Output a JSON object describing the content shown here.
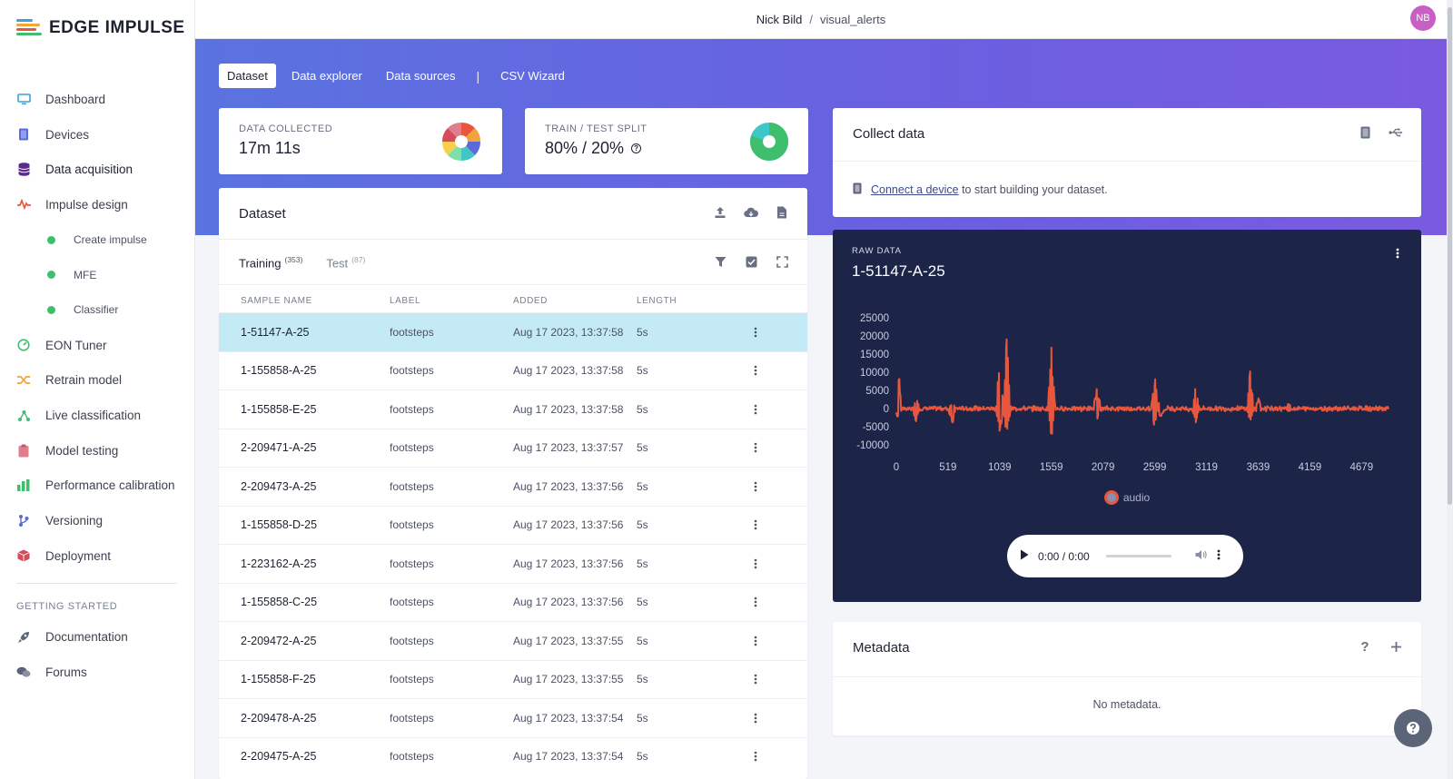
{
  "brand": {
    "name": "EDGE IMPULSE"
  },
  "sidebar": {
    "items": [
      {
        "label": "Dashboard",
        "icon": "monitor-icon"
      },
      {
        "label": "Devices",
        "icon": "chip-icon"
      },
      {
        "label": "Data acquisition",
        "icon": "database-icon"
      },
      {
        "label": "Impulse design",
        "icon": "pulse-icon"
      },
      {
        "label": "Create impulse",
        "icon": "dot-icon"
      },
      {
        "label": "MFE",
        "icon": "dot-icon"
      },
      {
        "label": "Classifier",
        "icon": "dot-icon"
      },
      {
        "label": "EON Tuner",
        "icon": "gauge-icon"
      },
      {
        "label": "Retrain model",
        "icon": "shuffle-icon"
      },
      {
        "label": "Live classification",
        "icon": "branch-icon"
      },
      {
        "label": "Model testing",
        "icon": "clipboard-icon"
      },
      {
        "label": "Performance calibration",
        "icon": "barchart-icon"
      },
      {
        "label": "Versioning",
        "icon": "git-branch-icon"
      },
      {
        "label": "Deployment",
        "icon": "box-icon"
      }
    ],
    "section_heading": "GETTING STARTED",
    "footer_items": [
      {
        "label": "Documentation",
        "icon": "rocket-icon"
      },
      {
        "label": "Forums",
        "icon": "chat-icon"
      }
    ]
  },
  "topbar": {
    "user": "Nick Bild",
    "separator": "/",
    "project": "visual_alerts",
    "avatar_initials": "NB"
  },
  "tabs": {
    "dataset": "Dataset",
    "explorer": "Data explorer",
    "sources": "Data sources",
    "separator": "|",
    "csv": "CSV Wizard"
  },
  "stats": {
    "collected_label": "DATA COLLECTED",
    "collected_value": "17m 11s",
    "split_label": "TRAIN / TEST SPLIT",
    "split_value": "80% / 20%",
    "split_help": "?",
    "train_fraction": 0.8
  },
  "dataset": {
    "title": "Dataset",
    "training_label": "Training",
    "training_count": "(353)",
    "test_label": "Test",
    "test_count": "(87)",
    "columns": {
      "name": "SAMPLE NAME",
      "label": "LABEL",
      "added": "ADDED",
      "length": "LENGTH"
    },
    "rows": [
      {
        "name": "1-51147-A-25",
        "label": "footsteps",
        "added": "Aug 17 2023, 13:37:58",
        "length": "5s"
      },
      {
        "name": "1-155858-A-25",
        "label": "footsteps",
        "added": "Aug 17 2023, 13:37:58",
        "length": "5s"
      },
      {
        "name": "1-155858-E-25",
        "label": "footsteps",
        "added": "Aug 17 2023, 13:37:58",
        "length": "5s"
      },
      {
        "name": "2-209471-A-25",
        "label": "footsteps",
        "added": "Aug 17 2023, 13:37:57",
        "length": "5s"
      },
      {
        "name": "2-209473-A-25",
        "label": "footsteps",
        "added": "Aug 17 2023, 13:37:56",
        "length": "5s"
      },
      {
        "name": "1-155858-D-25",
        "label": "footsteps",
        "added": "Aug 17 2023, 13:37:56",
        "length": "5s"
      },
      {
        "name": "1-223162-A-25",
        "label": "footsteps",
        "added": "Aug 17 2023, 13:37:56",
        "length": "5s"
      },
      {
        "name": "1-155858-C-25",
        "label": "footsteps",
        "added": "Aug 17 2023, 13:37:56",
        "length": "5s"
      },
      {
        "name": "2-209472-A-25",
        "label": "footsteps",
        "added": "Aug 17 2023, 13:37:55",
        "length": "5s"
      },
      {
        "name": "1-155858-F-25",
        "label": "footsteps",
        "added": "Aug 17 2023, 13:37:55",
        "length": "5s"
      },
      {
        "name": "2-209478-A-25",
        "label": "footsteps",
        "added": "Aug 17 2023, 13:37:54",
        "length": "5s"
      },
      {
        "name": "2-209475-A-25",
        "label": "footsteps",
        "added": "Aug 17 2023, 13:37:54",
        "length": "5s"
      }
    ]
  },
  "collect": {
    "title": "Collect data",
    "link_text": "Connect a device",
    "rest_text": "to start building your dataset."
  },
  "raw_data": {
    "label": "RAW DATA",
    "sample_name": "1-51147-A-25",
    "player_time": "0:00 / 0:00"
  },
  "chart_data": {
    "type": "line",
    "y_ticks": [
      "25000",
      "20000",
      "15000",
      "10000",
      "5000",
      "0",
      "-5000",
      "-10000"
    ],
    "x_ticks": [
      "0",
      "519",
      "1039",
      "1559",
      "2079",
      "2599",
      "3119",
      "3639",
      "4159",
      "4679"
    ],
    "ylim": [
      -10000,
      25000
    ],
    "xlim": [
      0,
      4950
    ],
    "legend": "bottom-center",
    "series": [
      {
        "name": "audio",
        "color": "#e8573d",
        "peaks": [
          {
            "x": 20,
            "hi": 11000,
            "lo": -3000
          },
          {
            "x": 200,
            "hi": 3000,
            "lo": -4000
          },
          {
            "x": 560,
            "hi": 2000,
            "lo": -5000
          },
          {
            "x": 1040,
            "hi": 16000,
            "lo": -7000
          },
          {
            "x": 1110,
            "hi": 22000,
            "lo": -9000
          },
          {
            "x": 1560,
            "hi": 17000,
            "lo": -9000
          },
          {
            "x": 2020,
            "hi": 7000,
            "lo": -3000
          },
          {
            "x": 2600,
            "hi": 10000,
            "lo": -6000
          },
          {
            "x": 2660,
            "hi": 4000,
            "lo": -3000
          },
          {
            "x": 3010,
            "hi": 6000,
            "lo": -4000
          },
          {
            "x": 3560,
            "hi": 11000,
            "lo": -4000
          },
          {
            "x": 3640,
            "hi": 3000,
            "lo": -2000
          },
          {
            "x": 3950,
            "hi": 2000,
            "lo": -1000
          }
        ]
      }
    ]
  },
  "metadata": {
    "title": "Metadata",
    "help": "?",
    "empty_text": "No metadata."
  },
  "colors": {
    "accent": "#6b5fe0",
    "selected_row": "#c4eaf5",
    "waveform": "#e8573d",
    "dot": "#3fbf6c"
  }
}
